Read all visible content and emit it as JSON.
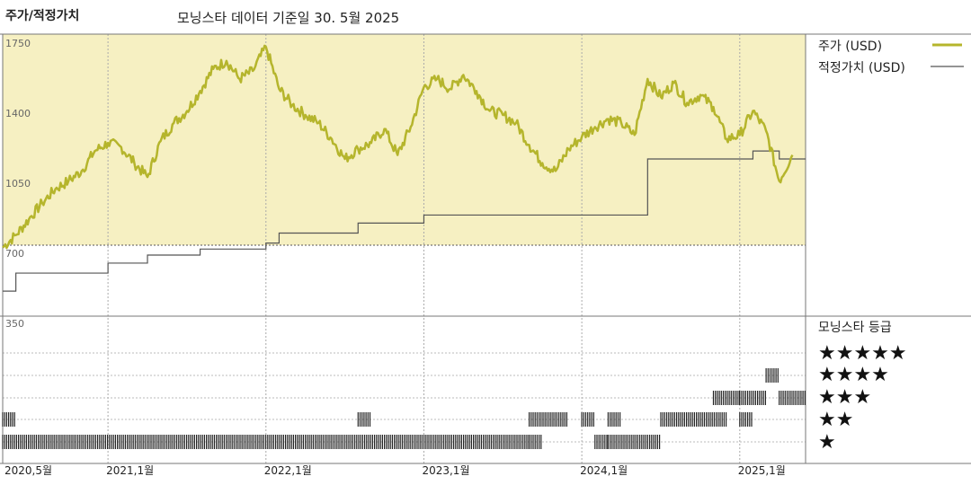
{
  "header": {
    "title": "주가/적정가치",
    "subtitle": "모닝스타 데이터 기준일 30. 5월 2025"
  },
  "colors": {
    "price": "#b5b52c",
    "fair": "#555555",
    "panel_bg": "#f6f0c2",
    "rating": "#222222"
  },
  "legend": {
    "price": "주가 (USD)",
    "fair": "적정가치 (USD)",
    "rating_title": "모닝스타 등급"
  },
  "stars": [
    "★★★★★",
    "★★★★",
    "★★★",
    "★★",
    "★"
  ],
  "chart_data": {
    "type": "line",
    "y_ticks": [
      "1750",
      "1400",
      "1050",
      "700",
      "350"
    ],
    "ylim": [
      350,
      1750
    ],
    "x_ticks": [
      "2020,5월",
      "2021,1월",
      "2022,1월",
      "2023,1월",
      "2024,1월",
      "2025,1월"
    ],
    "x_tick_dates": [
      "2020-05",
      "2021-01",
      "2022-01",
      "2023-01",
      "2024-01",
      "2025-01"
    ],
    "xlim": [
      "2020-05",
      "2025-06"
    ],
    "series": [
      {
        "name": "주가 (USD)",
        "points": [
          [
            "2020-05",
            738
          ],
          [
            "2020-06",
            800
          ],
          [
            "2020-07",
            880
          ],
          [
            "2020-08",
            960
          ],
          [
            "2020-09",
            1030
          ],
          [
            "2020-10",
            1070
          ],
          [
            "2020-11",
            1120
          ],
          [
            "2020-12",
            1220
          ],
          [
            "2021-01",
            1260
          ],
          [
            "2021-02",
            1240
          ],
          [
            "2021-03",
            1160
          ],
          [
            "2021-04",
            1090
          ],
          [
            "2021-05",
            1270
          ],
          [
            "2021-06",
            1360
          ],
          [
            "2021-07",
            1420
          ],
          [
            "2021-08",
            1520
          ],
          [
            "2021-09",
            1630
          ],
          [
            "2021-10",
            1670
          ],
          [
            "2021-11",
            1580
          ],
          [
            "2021-12",
            1620
          ],
          [
            "2022-01",
            1740
          ],
          [
            "2022-02",
            1530
          ],
          [
            "2022-03",
            1450
          ],
          [
            "2022-04",
            1400
          ],
          [
            "2022-05",
            1360
          ],
          [
            "2022-06",
            1280
          ],
          [
            "2022-07",
            1180
          ],
          [
            "2022-08",
            1230
          ],
          [
            "2022-09",
            1260
          ],
          [
            "2022-10",
            1330
          ],
          [
            "2022-11",
            1200
          ],
          [
            "2022-12",
            1340
          ],
          [
            "2023-01",
            1540
          ],
          [
            "2023-02",
            1580
          ],
          [
            "2023-03",
            1530
          ],
          [
            "2023-04",
            1600
          ],
          [
            "2023-05",
            1520
          ],
          [
            "2023-06",
            1420
          ],
          [
            "2023-07",
            1400
          ],
          [
            "2023-08",
            1360
          ],
          [
            "2023-09",
            1250
          ],
          [
            "2023-10",
            1160
          ],
          [
            "2023-11",
            1120
          ],
          [
            "2023-12",
            1230
          ],
          [
            "2024-01",
            1290
          ],
          [
            "2024-02",
            1340
          ],
          [
            "2024-03",
            1380
          ],
          [
            "2024-04",
            1360
          ],
          [
            "2024-05",
            1300
          ],
          [
            "2024-06",
            1580
          ],
          [
            "2024-07",
            1490
          ],
          [
            "2024-08",
            1560
          ],
          [
            "2024-09",
            1460
          ],
          [
            "2024-10",
            1500
          ],
          [
            "2024-11",
            1440
          ],
          [
            "2024-12",
            1280
          ],
          [
            "2025-01",
            1300
          ],
          [
            "2025-02",
            1420
          ],
          [
            "2025-03",
            1320
          ],
          [
            "2025-04",
            1070
          ],
          [
            "2025-05",
            1200
          ]
        ]
      },
      {
        "name": "적정가치 (USD)",
        "steps": [
          [
            "2020-05",
            520
          ],
          [
            "2020-06",
            610
          ],
          [
            "2021-01",
            660
          ],
          [
            "2021-04",
            700
          ],
          [
            "2021-08",
            730
          ],
          [
            "2022-01",
            760
          ],
          [
            "2022-02",
            810
          ],
          [
            "2022-08",
            860
          ],
          [
            "2023-01",
            900
          ],
          [
            "2024-06",
            1180
          ],
          [
            "2025-02",
            1220
          ],
          [
            "2025-04",
            1180
          ]
        ]
      }
    ],
    "ratings": {
      "levels": [
        "★★★★★",
        "★★★★",
        "★★★",
        "★★",
        "★"
      ],
      "periods": [
        {
          "start": "2020-05",
          "end": "2023-09",
          "stars": 1
        },
        {
          "start": "2020-05",
          "end": "2020-06",
          "stars": 2
        },
        {
          "start": "2022-08",
          "end": "2022-09",
          "stars": 2
        },
        {
          "start": "2023-09",
          "end": "2023-10",
          "stars": 1
        },
        {
          "start": "2023-09",
          "end": "2023-12",
          "stars": 2
        },
        {
          "start": "2024-01",
          "end": "2024-02",
          "stars": 2
        },
        {
          "start": "2024-02",
          "end": "2024-03",
          "stars": 1
        },
        {
          "start": "2024-03",
          "end": "2024-04",
          "stars": 2
        },
        {
          "start": "2024-03",
          "end": "2024-07",
          "stars": 1
        },
        {
          "start": "2024-07",
          "end": "2024-12",
          "stars": 2
        },
        {
          "start": "2024-11",
          "end": "2025-01",
          "stars": 3
        },
        {
          "start": "2025-01",
          "end": "2025-02",
          "stars": 2
        },
        {
          "start": "2025-01",
          "end": "2025-03",
          "stars": 3
        },
        {
          "start": "2025-03",
          "end": "2025-04",
          "stars": 4
        },
        {
          "start": "2025-04",
          "end": "2025-06",
          "stars": 3
        }
      ]
    }
  }
}
